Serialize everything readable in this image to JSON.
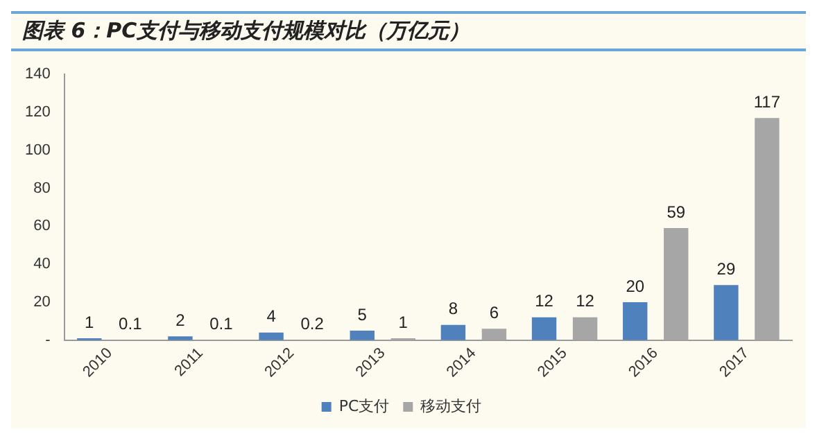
{
  "chart_data": {
    "type": "bar",
    "title": "图表 6：PC支付与移动支付规模对比（万亿元）",
    "categories": [
      "2010",
      "2011",
      "2012",
      "2013",
      "2014",
      "2015",
      "2016",
      "2017"
    ],
    "series": [
      {
        "name": "PC支付",
        "color": "#4f81bd",
        "values": [
          1,
          2,
          4,
          5,
          8,
          12,
          20,
          29
        ]
      },
      {
        "name": "移动支付",
        "color": "#a6a6a6",
        "values": [
          0.1,
          0.1,
          0.2,
          1,
          6,
          12,
          59,
          117
        ]
      }
    ],
    "ylim": [
      0,
      140
    ],
    "yticks": [
      {
        "value": 0,
        "label": "-"
      },
      20,
      40,
      60,
      80,
      100,
      120,
      140
    ],
    "data_labels": true,
    "grid": false,
    "legend": "bottom"
  }
}
